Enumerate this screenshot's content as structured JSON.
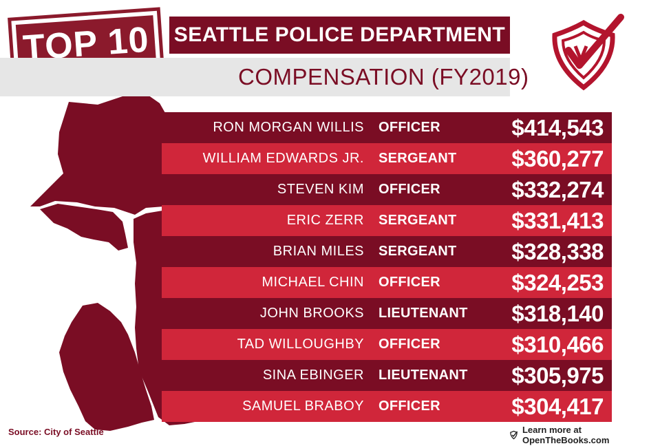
{
  "header": {
    "badge": "TOP 10",
    "title": "SEATTLE POLICE DEPARTMENT",
    "subtitle": "COMPENSATION (FY2019)"
  },
  "logo": {
    "icon": "shield-check-icon"
  },
  "table": {
    "rows": [
      {
        "name": "RON MORGAN WILLIS",
        "rank": "OFFICER",
        "amount": "$414,543"
      },
      {
        "name": "WILLIAM EDWARDS JR.",
        "rank": "SERGEANT",
        "amount": "$360,277"
      },
      {
        "name": "STEVEN KIM",
        "rank": "OFFICER",
        "amount": "$332,274"
      },
      {
        "name": "ERIC ZERR",
        "rank": "SERGEANT",
        "amount": "$331,413"
      },
      {
        "name": "BRIAN MILES",
        "rank": "SERGEANT",
        "amount": "$328,338"
      },
      {
        "name": "MICHAEL CHIN",
        "rank": "OFFICER",
        "amount": "$324,253"
      },
      {
        "name": "JOHN BROOKS",
        "rank": "LIEUTENANT",
        "amount": "$318,140"
      },
      {
        "name": "TAD WILLOUGHBY",
        "rank": "OFFICER",
        "amount": "$310,466"
      },
      {
        "name": "SINA EBINGER",
        "rank": "LIEUTENANT",
        "amount": "$305,975"
      },
      {
        "name": "SAMUEL BRABOY",
        "rank": "OFFICER",
        "amount": "$304,417"
      }
    ]
  },
  "footer": {
    "source": "Source: City of Seattle",
    "learn_more": "Learn more at OpenTheBooks.com",
    "learn_icon": "check-shield-icon"
  },
  "colors": {
    "dark_row": "#7a0d24",
    "light_row": "#d0263a",
    "map": "#7a0d24",
    "subtitle_bg": "#e6e6e6"
  }
}
